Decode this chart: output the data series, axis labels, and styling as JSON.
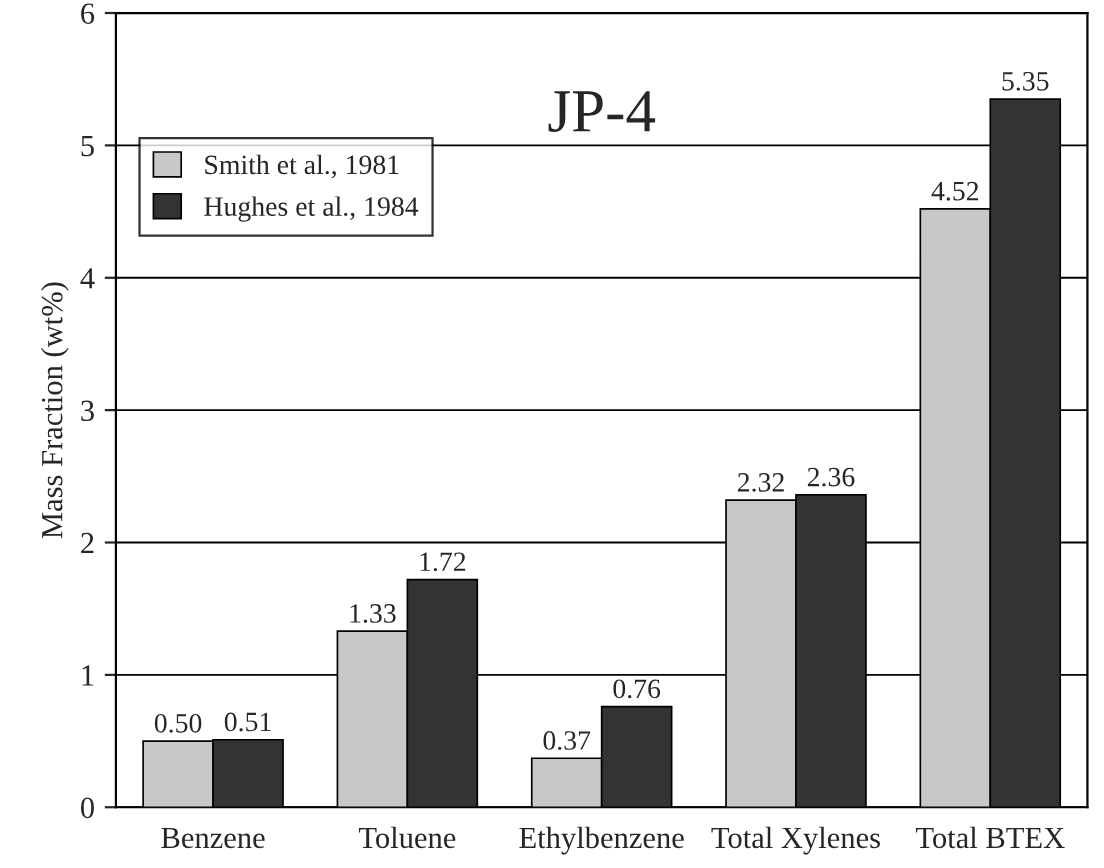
{
  "chart_data": {
    "type": "bar",
    "title": "JP-4",
    "ylabel": "Mass Fraction (wt%)",
    "categories": [
      "Benzene",
      "Toluene",
      "Ethylbenzene",
      "Total Xylenes",
      "Total BTEX"
    ],
    "series": [
      {
        "name": "Smith et al., 1981",
        "color": "#c8c8c8",
        "values": [
          0.5,
          1.33,
          0.37,
          2.32,
          4.52
        ],
        "value_labels": [
          "0.50",
          "1.33",
          "0.37",
          "2.32",
          "4.52"
        ]
      },
      {
        "name": "Hughes et al., 1984",
        "color": "#333333",
        "values": [
          0.51,
          1.72,
          0.76,
          2.36,
          5.35
        ],
        "value_labels": [
          "0.51",
          "1.72",
          "0.76",
          "2.36",
          "5.35"
        ]
      }
    ],
    "ylim": [
      0,
      6
    ],
    "yticks": [
      0,
      1,
      2,
      3,
      4,
      5,
      6
    ],
    "grid": "y",
    "legend": "top left"
  }
}
